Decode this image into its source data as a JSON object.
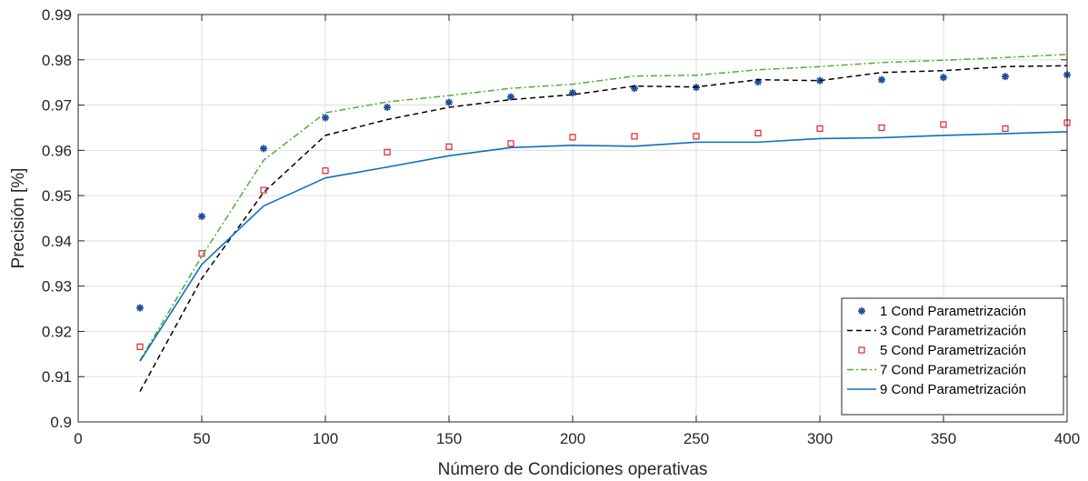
{
  "chart_data": {
    "type": "line",
    "xlabel": "Número de Condiciones operativas",
    "ylabel": "Precisión [%]",
    "xlim": [
      0,
      400
    ],
    "ylim": [
      0.9,
      0.99
    ],
    "xticks": [
      0,
      50,
      100,
      150,
      200,
      250,
      300,
      350,
      400
    ],
    "yticks": [
      0.9,
      0.91,
      0.92,
      0.93,
      0.94,
      0.95,
      0.96,
      0.97,
      0.98,
      0.99
    ],
    "xtick_labels": [
      "0",
      "50",
      "100",
      "150",
      "200",
      "250",
      "300",
      "350",
      "400"
    ],
    "ytick_labels": [
      "0.9",
      "0.91",
      "0.92",
      "0.93",
      "0.94",
      "0.95",
      "0.96",
      "0.97",
      "0.98",
      "0.99"
    ],
    "grid": true,
    "legend_position": "bottom-right",
    "x": [
      25,
      50,
      75,
      100,
      125,
      150,
      175,
      200,
      225,
      250,
      275,
      300,
      325,
      350,
      375,
      400
    ],
    "series": [
      {
        "name": "1 Cond Parametrización",
        "style": "marker-asterisk",
        "color": "#1f4e9c",
        "values": [
          0.9252,
          0.9454,
          0.9604,
          0.9672,
          0.9695,
          0.9706,
          0.9718,
          0.9727,
          0.9737,
          0.9739,
          0.9751,
          0.9754,
          0.9756,
          0.9761,
          0.9763,
          0.9767
        ]
      },
      {
        "name": "3 Cond Parametrización",
        "style": "dashed",
        "color": "#000000",
        "values": [
          0.9067,
          0.9317,
          0.9507,
          0.9633,
          0.9668,
          0.9695,
          0.9712,
          0.9723,
          0.9742,
          0.974,
          0.9756,
          0.9754,
          0.9772,
          0.9776,
          0.9785,
          0.9787
        ]
      },
      {
        "name": "5 Cond Parametrización",
        "style": "marker-square",
        "color": "#e0252b",
        "values": [
          0.9166,
          0.9372,
          0.9512,
          0.9555,
          0.9596,
          0.9608,
          0.9615,
          0.9629,
          0.9631,
          0.9631,
          0.9638,
          0.9648,
          0.965,
          0.9657,
          0.9648,
          0.9661
        ]
      },
      {
        "name": "7 Cond Parametrización",
        "style": "dashdot",
        "color": "#4caf32",
        "values": [
          0.9136,
          0.9366,
          0.9578,
          0.9683,
          0.9707,
          0.9721,
          0.9737,
          0.9746,
          0.9764,
          0.9766,
          0.9778,
          0.9785,
          0.9794,
          0.9799,
          0.9805,
          0.9812
        ]
      },
      {
        "name": "9 Cond Parametrización",
        "style": "solid",
        "color": "#0f6fbf",
        "values": [
          0.9134,
          0.9348,
          0.9477,
          0.9539,
          0.9563,
          0.9588,
          0.9606,
          0.9611,
          0.9609,
          0.9618,
          0.9618,
          0.9626,
          0.9628,
          0.9633,
          0.9637,
          0.9641
        ]
      }
    ]
  }
}
